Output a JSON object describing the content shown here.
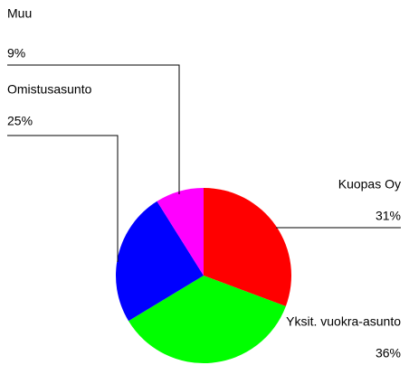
{
  "chart_data": {
    "type": "pie",
    "categories": [
      "Kuopas Oy",
      "Yksit. vuokra-asunto",
      "Omistusasunto",
      "Muu"
    ],
    "values": [
      31,
      36,
      25,
      9
    ],
    "value_labels": [
      "31%",
      "36%",
      "25%",
      "9%"
    ],
    "colors": [
      "#ff0000",
      "#00ff00",
      "#0000ff",
      "#ff00ff"
    ]
  }
}
